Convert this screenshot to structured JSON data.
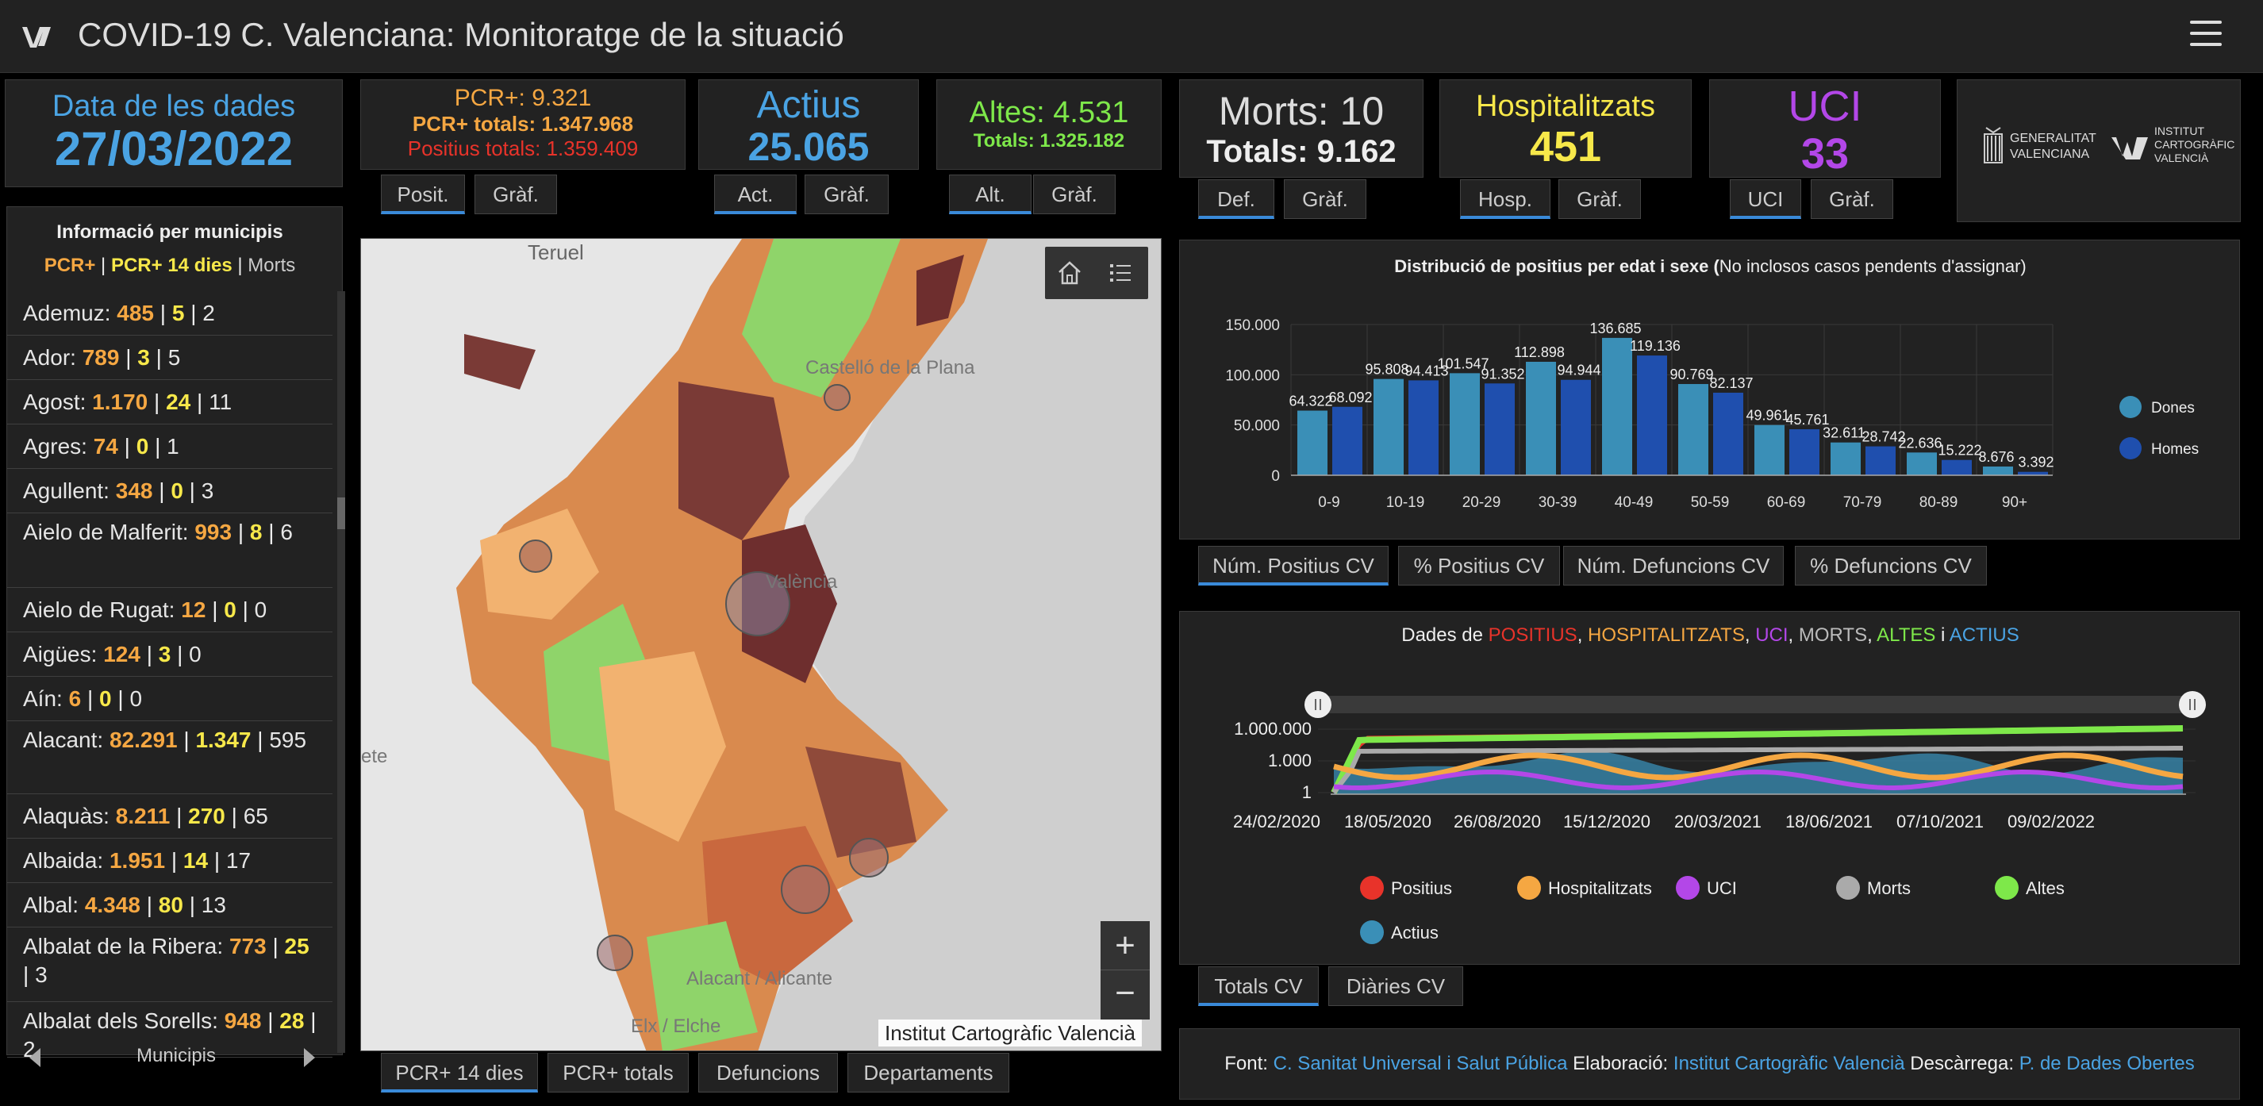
{
  "header": {
    "title": "COVID-19 C. Valenciana: Monitoratge de la situació"
  },
  "date_card": {
    "label": "Data de les dades",
    "value": "27/03/2022"
  },
  "pcr_card": {
    "pcr": "PCR+: 9.321",
    "pcr_totals": "PCR+ totals: 1.347.968",
    "positius_totals": "Positius totals: 1.359.409",
    "tabs": [
      "Posit.",
      "Gràf."
    ]
  },
  "actius_card": {
    "label": "Actius",
    "value": "25.065",
    "tabs": [
      "Act.",
      "Gràf."
    ]
  },
  "altes_card": {
    "label": "Altes: 4.531",
    "totals": "Totals: 1.325.182",
    "tabs": [
      "Alt.",
      "Gràf."
    ]
  },
  "morts_card": {
    "label": "Morts: 10",
    "totals": "Totals: 9.162",
    "tabs": [
      "Def.",
      "Gràf."
    ]
  },
  "hosp_card": {
    "label": "Hospitalitzats",
    "value": "451",
    "tabs": [
      "Hosp.",
      "Gràf."
    ]
  },
  "uci_card": {
    "label": "UCI",
    "value": "33",
    "tabs": [
      "UCI",
      "Gràf."
    ]
  },
  "logos": {
    "gva_line1": "GENERALITAT",
    "gva_line2": "VALENCIANA",
    "icv_line1": "INSTITUT",
    "icv_line2": "CARTOGRÀFIC",
    "icv_line3": "VALENCIÀ"
  },
  "municipis": {
    "title": "Informació per municipis",
    "legend": {
      "a": "PCR+",
      "sep1": " | ",
      "b": "PCR+ 14 dies",
      "sep2": " | ",
      "c": "Morts"
    },
    "items": [
      {
        "name": "Ademuz:",
        "a": "485",
        "b": "5",
        "c": "2"
      },
      {
        "name": "Ador:",
        "a": "789",
        "b": "3",
        "c": "5"
      },
      {
        "name": "Agost:",
        "a": "1.170",
        "b": "24",
        "c": "11"
      },
      {
        "name": "Agres:",
        "a": "74",
        "b": "0",
        "c": "1"
      },
      {
        "name": "Agullent:",
        "a": "348",
        "b": "0",
        "c": "3"
      },
      {
        "name": "Aielo de Malferit:",
        "a": "993",
        "b": "8",
        "c": "6"
      },
      {
        "name": "Aielo de Rugat:",
        "a": "12",
        "b": "0",
        "c": "0"
      },
      {
        "name": "Aigües:",
        "a": "124",
        "b": "3",
        "c": "0"
      },
      {
        "name": "Aín:",
        "a": "6",
        "b": "0",
        "c": "0"
      },
      {
        "name": "Alacant:",
        "a": "82.291",
        "b": "1.347",
        "c": "595"
      },
      {
        "name": "Alaquàs:",
        "a": "8.211",
        "b": "270",
        "c": "65"
      },
      {
        "name": "Albaida:",
        "a": "1.951",
        "b": "14",
        "c": "17"
      },
      {
        "name": "Albal:",
        "a": "4.348",
        "b": "80",
        "c": "13"
      },
      {
        "name": "Albalat de la Ribera:",
        "a": "773",
        "b": "25",
        "c": "3"
      },
      {
        "name": "Albalat dels Sorells:",
        "a": "948",
        "b": "28",
        "c": "2"
      }
    ],
    "nav_label": "Municipis"
  },
  "map": {
    "places": [
      "Teruel",
      "Castelló de la Plana",
      "València",
      "Alacant / Alicante",
      "Elx / Elche",
      "ete"
    ],
    "attribution": "Institut Cartogràfic Valencià",
    "tabs": [
      "PCR+ 14 dies",
      "PCR+ totals",
      "Defuncions",
      "Departaments"
    ]
  },
  "bar_chart": {
    "title_bold": "Distribució de positius per edat i sexe (",
    "title_rest": "No inclosos casos pendents d'assignar)",
    "tabs": [
      "Núm. Positius CV",
      "% Positius CV",
      "Núm. Defuncions CV",
      "% Defuncions CV"
    ],
    "colors": {
      "dones": "#3a8fb7",
      "homes": "#1f4fae"
    }
  },
  "line_chart": {
    "title_parts": [
      {
        "t": "Dades de ",
        "c": "#eeeeee"
      },
      {
        "t": "POSITIUS",
        "c": "#e8332a"
      },
      {
        "t": ", ",
        "c": "#eeeeee"
      },
      {
        "t": "HOSPITALITZATS",
        "c": "#f5a742"
      },
      {
        "t": ", ",
        "c": "#eeeeee"
      },
      {
        "t": "UCI",
        "c": "#b347e8"
      },
      {
        "t": ", ",
        "c": "#eeeeee"
      },
      {
        "t": "MORTS",
        "c": "#bbbbbb"
      },
      {
        "t": ", ",
        "c": "#eeeeee"
      },
      {
        "t": "ALTES",
        "c": "#7ee84a"
      },
      {
        "t": " i ",
        "c": "#eeeeee"
      },
      {
        "t": "ACTIUS",
        "c": "#4aa3e3"
      }
    ],
    "tabs": [
      "Totals CV",
      "Diàries CV"
    ]
  },
  "footer": {
    "font_label": "Font:",
    "font_link": "C. Sanitat Universal i Salut Pública",
    "elab_label": "Elaboració:",
    "elab_link": "Institut Cartogràfic Valencià",
    "desc_label": "Descàrrega:",
    "desc_link": "P. de Dades Obertes"
  },
  "chart_data": [
    {
      "type": "bar",
      "title": "Distribució de positius per edat i sexe (No inclosos casos pendents d'assignar)",
      "categories": [
        "0-9",
        "10-19",
        "20-29",
        "30-39",
        "40-49",
        "50-59",
        "60-69",
        "70-79",
        "80-89",
        "90+"
      ],
      "series": [
        {
          "name": "Dones",
          "values": [
            64322,
            95808,
            101547,
            112898,
            136685,
            90769,
            49961,
            32611,
            22636,
            8676
          ]
        },
        {
          "name": "Homes",
          "values": [
            68092,
            94413,
            91352,
            94944,
            119136,
            82137,
            45761,
            28742,
            15222,
            3392
          ]
        }
      ],
      "value_labels": {
        "Dones": [
          "64.322",
          "95.808",
          "101.547",
          "112.898",
          "136.685",
          "90.769",
          "49.961",
          "32.611",
          "22.636",
          "8.676"
        ],
        "Homes": [
          "68.092",
          "94.413",
          "91.352",
          "94.944",
          "119.136",
          "82.137",
          "45.761",
          "28.742",
          "15.222",
          "3.392"
        ]
      },
      "yticks": [
        "0",
        "50.000",
        "100.000",
        "150.000"
      ],
      "ylim": [
        0,
        150000
      ],
      "legend": "right",
      "grid": true
    },
    {
      "type": "line",
      "title": "Dades de POSITIUS, HOSPITALITZATS, UCI, MORTS, ALTES i ACTIUS",
      "yscale": "log",
      "yticks": [
        "1",
        "1.000",
        "1.000.000"
      ],
      "xticks": [
        "24/02/2020",
        "18/05/2020",
        "26/08/2020",
        "15/12/2020",
        "20/03/2021",
        "18/06/2021",
        "07/10/2021",
        "09/02/2022"
      ],
      "series": [
        {
          "name": "Positius",
          "color": "#e8332a"
        },
        {
          "name": "Hospitalitzats",
          "color": "#f5a742"
        },
        {
          "name": "UCI",
          "color": "#b347e8"
        },
        {
          "name": "Morts",
          "color": "#aaaaaa"
        },
        {
          "name": "Altes",
          "color": "#7ee84a"
        },
        {
          "name": "Actius",
          "color": "#3a8fb7"
        }
      ],
      "legend": "bottom"
    }
  ]
}
